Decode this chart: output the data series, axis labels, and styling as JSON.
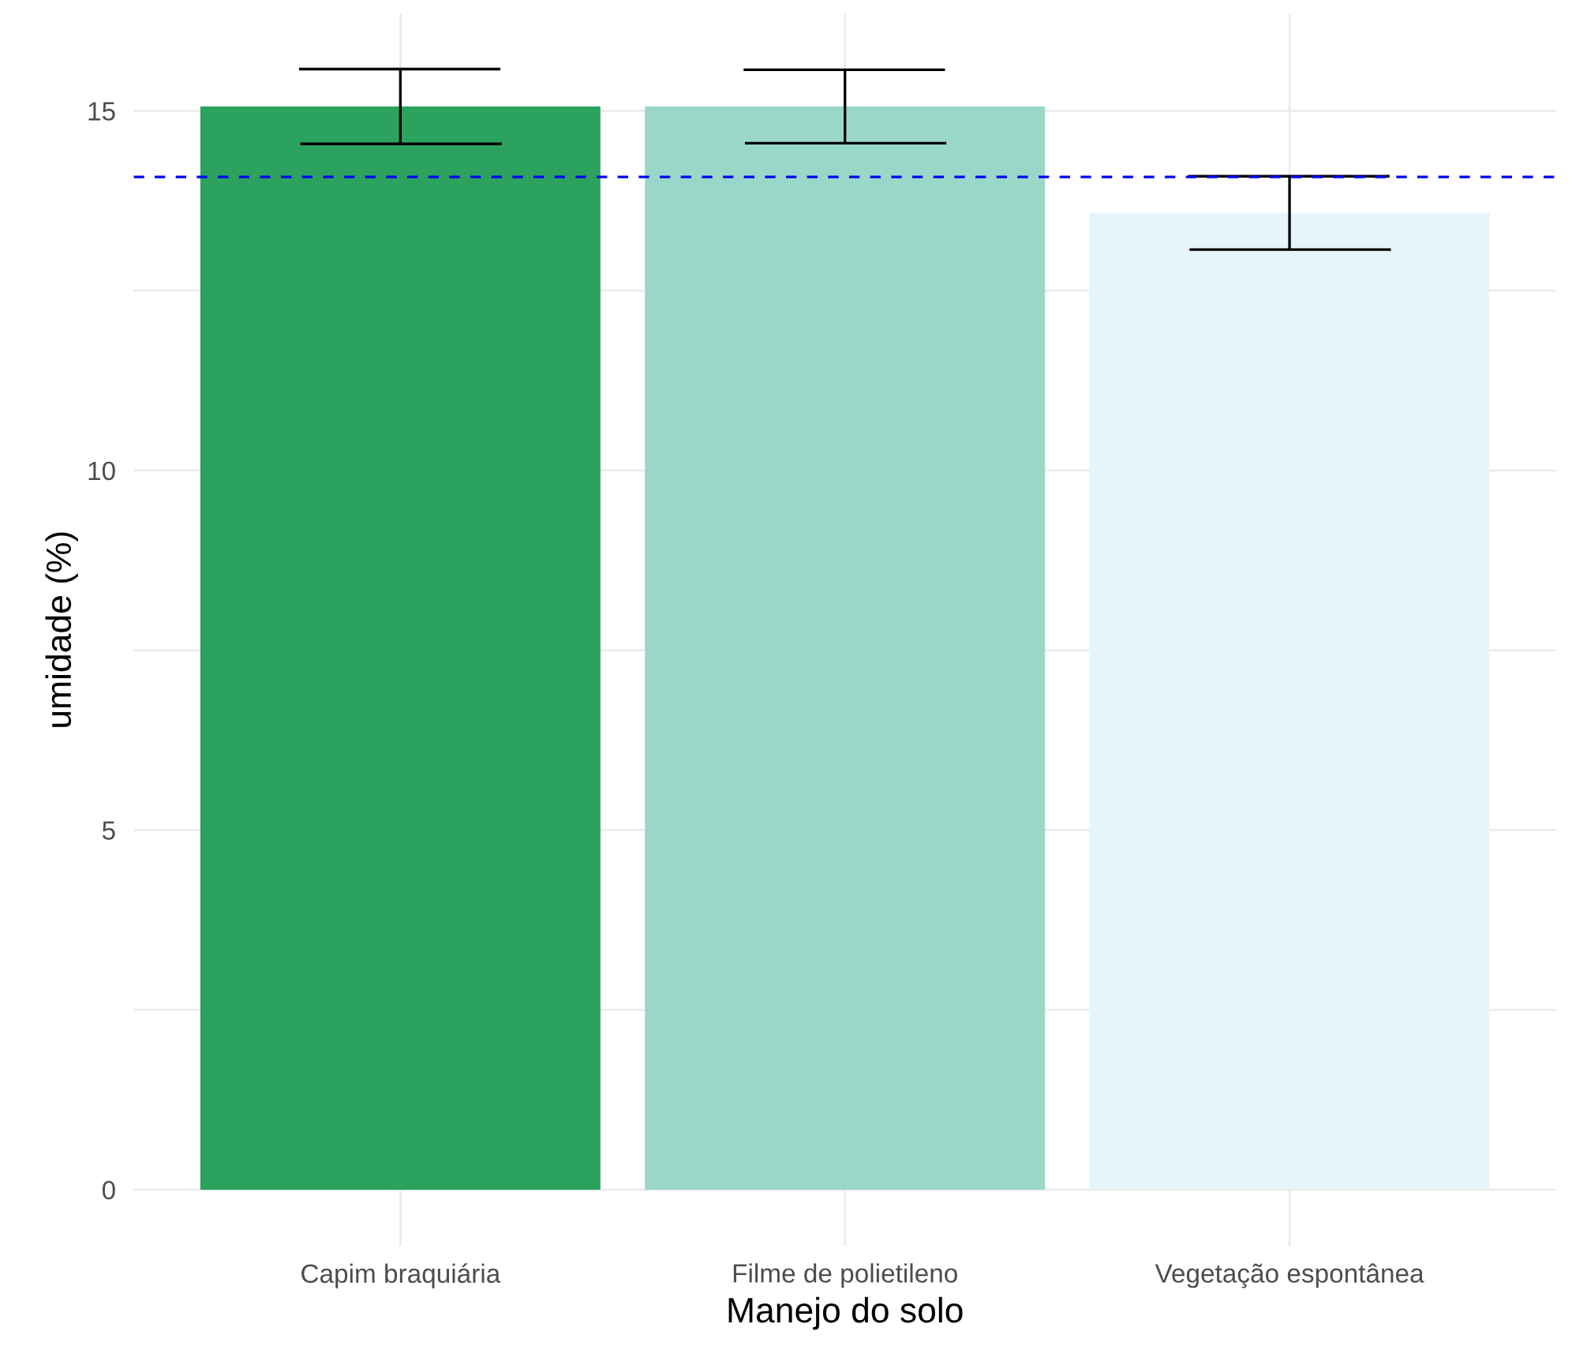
{
  "chart_data": {
    "type": "bar",
    "xlabel": "Manejo do solo",
    "ylabel": "umidade (%)",
    "categories": [
      "Capim braquiária",
      "Filme de polietileno",
      "Vegetação espontânea"
    ],
    "values": [
      15.06,
      15.06,
      13.58
    ],
    "colors": [
      "#2ca25f",
      "#99d8c9",
      "#e5f5f9"
    ],
    "errors": [
      0.52,
      0.51,
      0.51
    ],
    "ylim": [
      -0.78,
      16.35
    ],
    "yticks": [
      0,
      {
        "value": 2.5,
        "label": null
      },
      5,
      {
        "value": 7.5,
        "label": null
      },
      10,
      {
        "value": 12.5,
        "label": null
      },
      15
    ],
    "ref_lines": [
      {
        "axis": "y",
        "value": 14.08,
        "color": "#0000ff",
        "line_style": "dashed"
      }
    ],
    "grid": true
  }
}
